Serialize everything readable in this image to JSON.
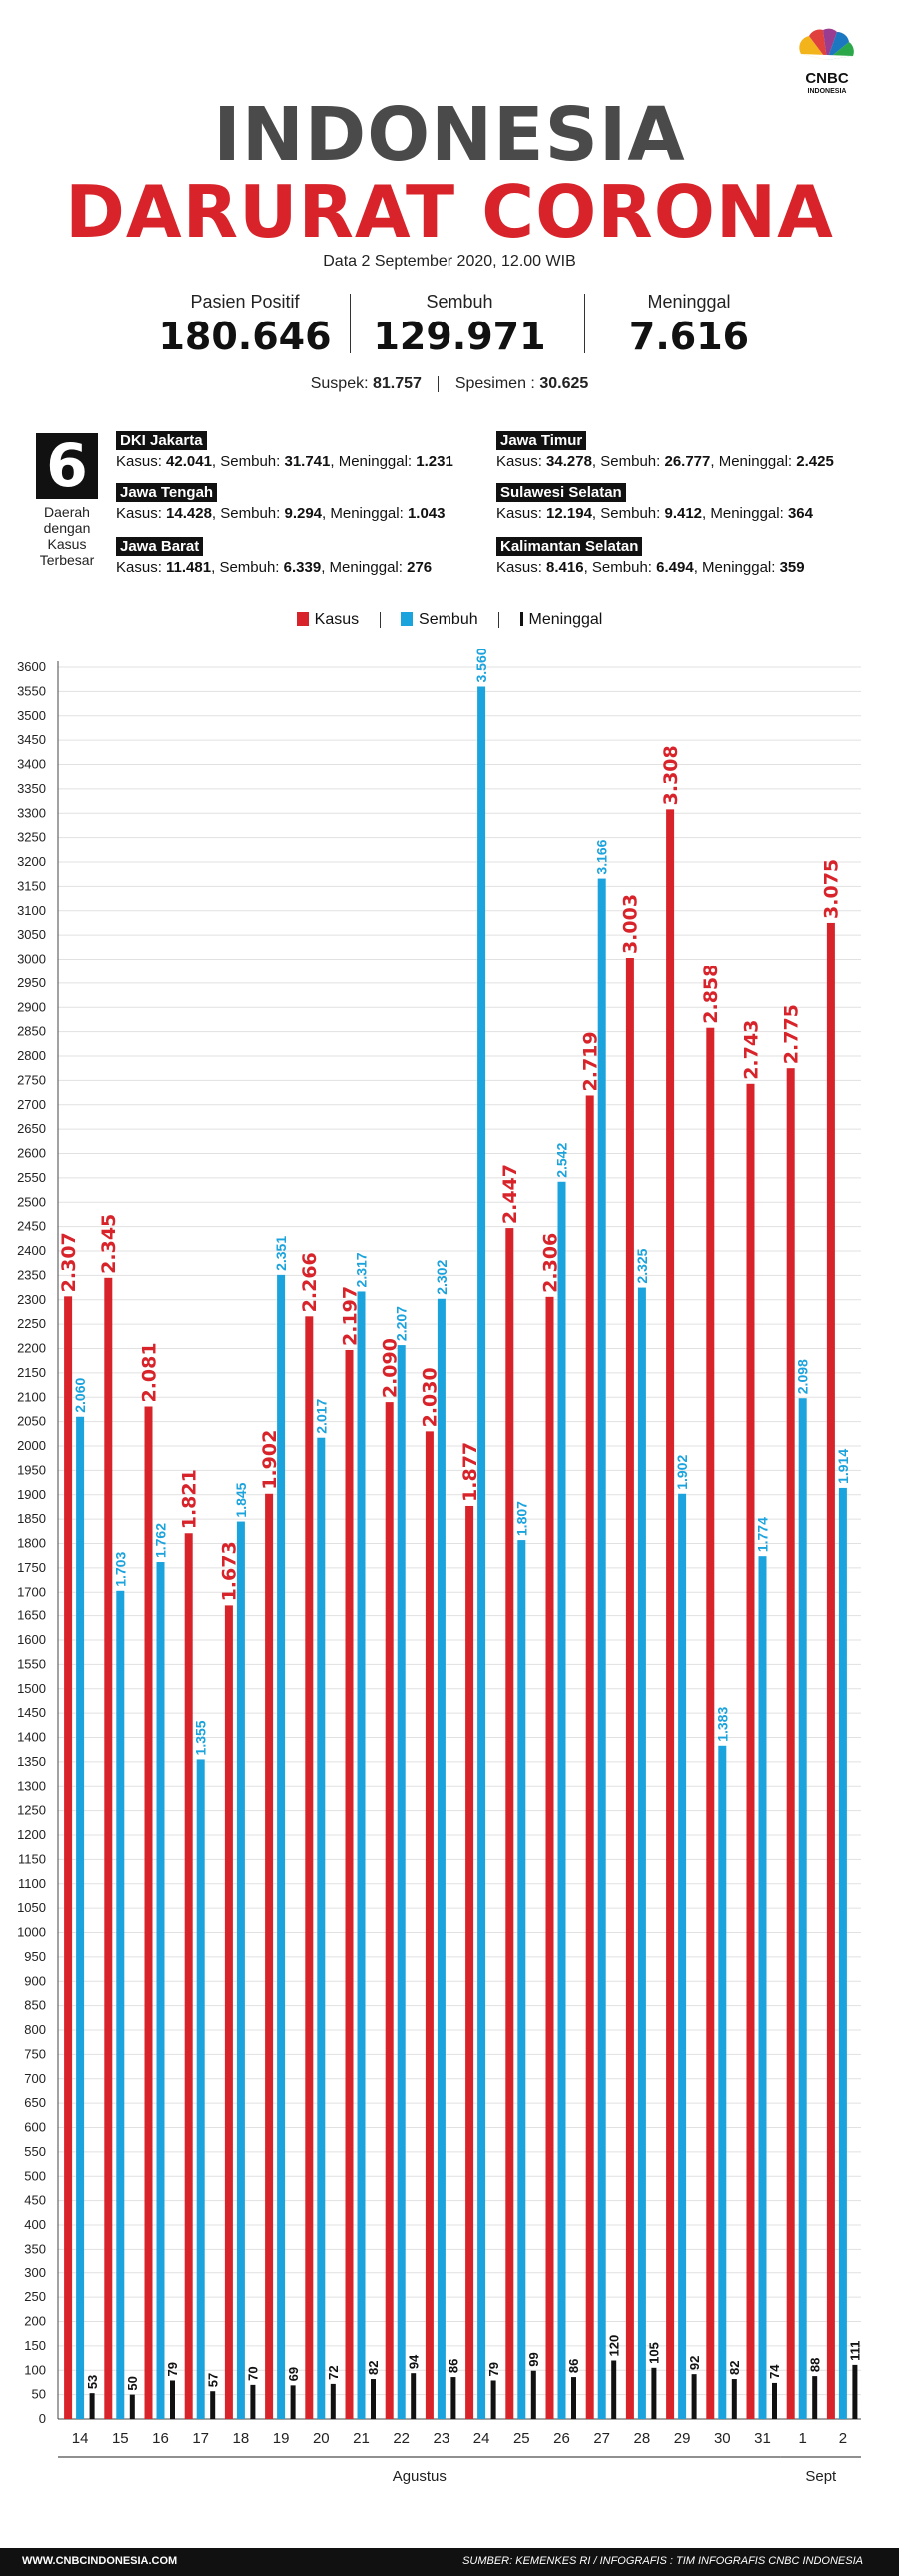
{
  "brand": {
    "logo_text": "CNBC",
    "logo_sub": "INDONESIA"
  },
  "title": {
    "line1": "INDONESIA",
    "line2": "DARURAT CORONA"
  },
  "date_text": "Data 2 September 2020, 12.00 WIB",
  "stats": [
    {
      "label": "Pasien Positif",
      "value": "180.646"
    },
    {
      "label": "Sembuh",
      "value": "129.971"
    },
    {
      "label": "Meninggal",
      "value": "7.616"
    }
  ],
  "extra": {
    "suspek_label": "Suspek:",
    "suspek_value": "81.757",
    "spesimen_label": "Spesimen :",
    "spesimen_value": "30.625"
  },
  "top_regions": {
    "count": "6",
    "caption": "Daerah dengan Kasus Terbesar",
    "items": [
      {
        "name": "DKI Jakarta",
        "kasus": "42.041",
        "sembuh": "31.741",
        "meninggal": "1.231"
      },
      {
        "name": "Jawa Tengah",
        "kasus": "14.428",
        "sembuh": "9.294",
        "meninggal": "1.043"
      },
      {
        "name": "Jawa Barat",
        "kasus": "11.481",
        "sembuh": "6.339",
        "meninggal": "276"
      },
      {
        "name": "Jawa Timur",
        "kasus": "34.278",
        "sembuh": "26.777",
        "meninggal": "2.425"
      },
      {
        "name": "Sulawesi Selatan",
        "kasus": "12.194",
        "sembuh": "9.412",
        "meninggal": "364"
      },
      {
        "name": "Kalimantan Selatan",
        "kasus": "8.416",
        "sembuh": "6.494",
        "meninggal": "359"
      }
    ],
    "labels": {
      "kasus": "Kasus:",
      "sembuh": "Sembuh:",
      "meninggal": "Meninggal:"
    }
  },
  "colors": {
    "kasus": "#d8232a",
    "sembuh": "#1aa3dd",
    "meninggal": "#111111",
    "title_gray": "#4a4a4a"
  },
  "chart_data": {
    "type": "bar",
    "categories": [
      "14",
      "15",
      "16",
      "17",
      "18",
      "19",
      "20",
      "21",
      "22",
      "23",
      "24",
      "25",
      "26",
      "27",
      "28",
      "29",
      "30",
      "31",
      "1",
      "2"
    ],
    "month_groups": [
      {
        "label": "Agustus",
        "from": "14",
        "to": "31"
      },
      {
        "label": "Sept",
        "from": "1",
        "to": "2"
      }
    ],
    "series": [
      {
        "name": "Kasus",
        "color": "#d8232a",
        "values": [
          2307,
          2345,
          2081,
          1821,
          1673,
          1902,
          2266,
          2197,
          2090,
          2030,
          1877,
          2447,
          2306,
          2719,
          3003,
          3308,
          2858,
          2743,
          2775,
          3075
        ],
        "labels": [
          "2.307",
          "2.345",
          "2.081",
          "1.821",
          "1.673",
          "1.902",
          "2.266",
          "2.197",
          "2.090",
          "2.030",
          "1.877",
          "2.447",
          "2.306",
          "2.719",
          "3.003",
          "3.308",
          "2.858",
          "2.743",
          "2.775",
          "3.075"
        ]
      },
      {
        "name": "Sembuh",
        "color": "#1aa3dd",
        "values": [
          2060,
          1703,
          1762,
          1355,
          1845,
          2351,
          2017,
          2317,
          2207,
          2302,
          3560,
          1807,
          2542,
          3166,
          2325,
          1902,
          1383,
          1774,
          2098,
          1914
        ],
        "labels": [
          "2.060",
          "1.703",
          "1.762",
          "1.355",
          "1.845",
          "2.351",
          "2.017",
          "2.317",
          "2.207",
          "2.302",
          "3.560",
          "1.807",
          "2.542",
          "3.166",
          "2.325",
          "1.902",
          "1.383",
          "1.774",
          "2.098",
          "1.914"
        ]
      },
      {
        "name": "Meninggal",
        "color": "#111111",
        "values": [
          53,
          50,
          79,
          57,
          70,
          69,
          72,
          82,
          94,
          86,
          79,
          99,
          86,
          120,
          105,
          92,
          82,
          74,
          88,
          111
        ],
        "labels": [
          "53",
          "50",
          "79",
          "57",
          "70",
          "69",
          "72",
          "82",
          "94",
          "86",
          "79",
          "99",
          "86",
          "120",
          "105",
          "92",
          "82",
          "74",
          "88",
          "111"
        ]
      }
    ],
    "ylim": [
      0,
      3600
    ],
    "ytick_step": 50,
    "grid": true,
    "legend": "top-center"
  },
  "footer": {
    "left": "WWW.CNBCINDONESIA.COM",
    "right": "SUMBER: KEMENKES RI / INFOGRAFIS : TIM INFOGRAFIS CNBC INDONESIA"
  }
}
